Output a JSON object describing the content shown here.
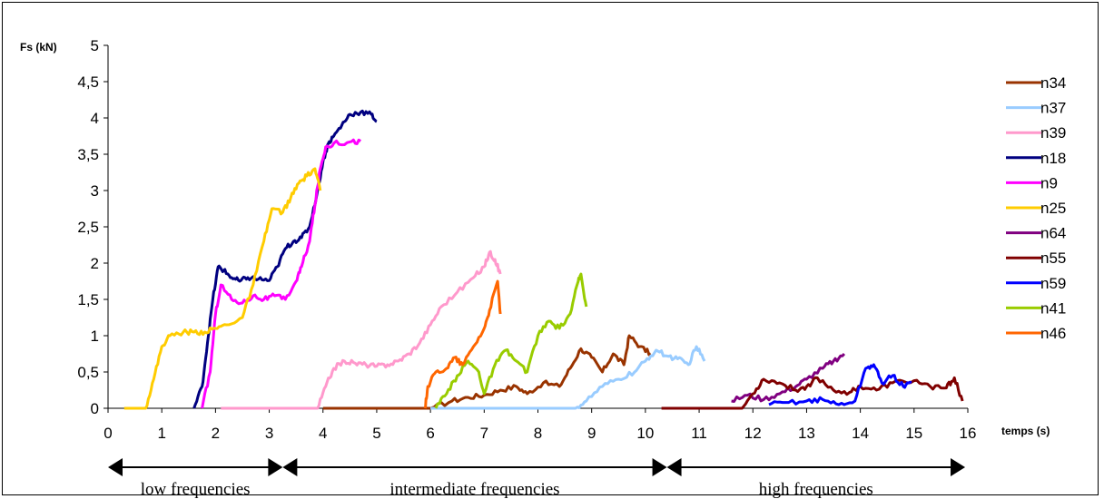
{
  "chart_data": {
    "type": "line",
    "ylabel": "Fs (kN)",
    "xlabel": "temps (s)",
    "xlim": [
      0,
      16
    ],
    "ylim": [
      0,
      5
    ],
    "xticks": [
      "0",
      "1",
      "2",
      "3",
      "4",
      "5",
      "6",
      "7",
      "8",
      "9",
      "10",
      "11",
      "12",
      "13",
      "14",
      "15",
      "16"
    ],
    "yticks": [
      "0",
      "0,5",
      "1",
      "1,5",
      "2",
      "2,5",
      "3",
      "3,5",
      "4",
      "4,5",
      "5"
    ],
    "grid": false,
    "legend_position": "right",
    "series": [
      {
        "name": "n34",
        "color": "#993300",
        "points": [
          [
            4.0,
            0.0
          ],
          [
            6.0,
            0.0
          ],
          [
            6.4,
            0.1
          ],
          [
            6.7,
            0.15
          ],
          [
            7.0,
            0.18
          ],
          [
            7.3,
            0.25
          ],
          [
            7.6,
            0.3
          ],
          [
            7.8,
            0.2
          ],
          [
            8.1,
            0.35
          ],
          [
            8.4,
            0.3
          ],
          [
            8.6,
            0.55
          ],
          [
            8.8,
            0.82
          ],
          [
            9.0,
            0.7
          ],
          [
            9.2,
            0.5
          ],
          [
            9.4,
            0.75
          ],
          [
            9.6,
            0.6
          ],
          [
            9.7,
            1.0
          ],
          [
            9.9,
            0.85
          ],
          [
            10.1,
            0.75
          ]
        ]
      },
      {
        "name": "n37",
        "color": "#99CCFF",
        "points": [
          [
            6.0,
            0.0
          ],
          [
            8.7,
            0.0
          ],
          [
            8.9,
            0.1
          ],
          [
            9.2,
            0.3
          ],
          [
            9.5,
            0.4
          ],
          [
            9.8,
            0.5
          ],
          [
            10.0,
            0.65
          ],
          [
            10.2,
            0.8
          ],
          [
            10.4,
            0.72
          ],
          [
            10.6,
            0.68
          ],
          [
            10.8,
            0.6
          ],
          [
            10.95,
            0.85
          ],
          [
            11.1,
            0.65
          ]
        ]
      },
      {
        "name": "n39",
        "color": "#FF99CC",
        "points": [
          [
            2.1,
            0.0
          ],
          [
            3.9,
            0.0
          ],
          [
            4.05,
            0.3
          ],
          [
            4.2,
            0.55
          ],
          [
            4.4,
            0.65
          ],
          [
            4.6,
            0.62
          ],
          [
            4.8,
            0.6
          ],
          [
            5.0,
            0.58
          ],
          [
            5.2,
            0.6
          ],
          [
            5.4,
            0.65
          ],
          [
            5.6,
            0.75
          ],
          [
            5.8,
            0.9
          ],
          [
            6.0,
            1.15
          ],
          [
            6.2,
            1.4
          ],
          [
            6.5,
            1.6
          ],
          [
            6.8,
            1.8
          ],
          [
            7.0,
            1.95
          ],
          [
            7.1,
            2.15
          ],
          [
            7.2,
            2.05
          ],
          [
            7.3,
            1.85
          ]
        ]
      },
      {
        "name": "n18",
        "color": "#000080",
        "points": [
          [
            1.6,
            0.0
          ],
          [
            1.75,
            0.3
          ],
          [
            1.85,
            0.9
          ],
          [
            1.95,
            1.5
          ],
          [
            2.05,
            1.95
          ],
          [
            2.15,
            1.9
          ],
          [
            2.3,
            1.8
          ],
          [
            2.45,
            1.75
          ],
          [
            2.6,
            1.8
          ],
          [
            2.8,
            1.78
          ],
          [
            3.0,
            1.76
          ],
          [
            3.15,
            1.95
          ],
          [
            3.3,
            2.2
          ],
          [
            3.45,
            2.3
          ],
          [
            3.6,
            2.35
          ],
          [
            3.75,
            2.5
          ],
          [
            3.9,
            3.0
          ],
          [
            4.0,
            3.4
          ],
          [
            4.1,
            3.65
          ],
          [
            4.2,
            3.75
          ],
          [
            4.35,
            3.9
          ],
          [
            4.5,
            4.05
          ],
          [
            4.7,
            4.08
          ],
          [
            4.9,
            4.05
          ],
          [
            5.0,
            3.95
          ]
        ]
      },
      {
        "name": "n9",
        "color": "#FF00FF",
        "points": [
          [
            1.75,
            0.0
          ],
          [
            1.9,
            0.5
          ],
          [
            2.0,
            1.3
          ],
          [
            2.1,
            1.7
          ],
          [
            2.3,
            1.5
          ],
          [
            2.5,
            1.45
          ],
          [
            2.7,
            1.55
          ],
          [
            2.9,
            1.5
          ],
          [
            3.1,
            1.55
          ],
          [
            3.3,
            1.5
          ],
          [
            3.5,
            1.75
          ],
          [
            3.6,
            1.95
          ],
          [
            3.75,
            2.3
          ],
          [
            3.85,
            2.8
          ],
          [
            3.95,
            3.3
          ],
          [
            4.05,
            3.6
          ],
          [
            4.2,
            3.65
          ],
          [
            4.5,
            3.67
          ],
          [
            4.7,
            3.68
          ]
        ]
      },
      {
        "name": "n25",
        "color": "#FFCC00",
        "points": [
          [
            0.3,
            0.0
          ],
          [
            0.7,
            0.0
          ],
          [
            0.85,
            0.4
          ],
          [
            1.0,
            0.85
          ],
          [
            1.15,
            1.0
          ],
          [
            1.4,
            1.05
          ],
          [
            1.6,
            1.05
          ],
          [
            1.8,
            1.05
          ],
          [
            2.0,
            1.1
          ],
          [
            2.2,
            1.15
          ],
          [
            2.5,
            1.25
          ],
          [
            2.7,
            1.7
          ],
          [
            2.9,
            2.3
          ],
          [
            3.05,
            2.75
          ],
          [
            3.25,
            2.7
          ],
          [
            3.4,
            2.9
          ],
          [
            3.55,
            3.1
          ],
          [
            3.7,
            3.2
          ],
          [
            3.85,
            3.3
          ],
          [
            3.95,
            3.0
          ]
        ]
      },
      {
        "name": "n64",
        "color": "#800080",
        "points": [
          [
            11.6,
            0.1
          ],
          [
            11.9,
            0.18
          ],
          [
            12.2,
            0.12
          ],
          [
            12.5,
            0.2
          ],
          [
            12.8,
            0.3
          ],
          [
            13.0,
            0.4
          ],
          [
            13.3,
            0.55
          ],
          [
            13.5,
            0.65
          ],
          [
            13.7,
            0.75
          ]
        ]
      },
      {
        "name": "n55",
        "color": "#800000",
        "points": [
          [
            10.3,
            0.0
          ],
          [
            11.8,
            0.0
          ],
          [
            12.0,
            0.2
          ],
          [
            12.2,
            0.4
          ],
          [
            12.5,
            0.35
          ],
          [
            12.8,
            0.25
          ],
          [
            13.0,
            0.3
          ],
          [
            13.2,
            0.42
          ],
          [
            13.5,
            0.25
          ],
          [
            13.8,
            0.22
          ],
          [
            14.0,
            0.3
          ],
          [
            14.3,
            0.25
          ],
          [
            14.6,
            0.35
          ],
          [
            15.0,
            0.38
          ],
          [
            15.3,
            0.3
          ],
          [
            15.6,
            0.28
          ],
          [
            15.75,
            0.42
          ],
          [
            15.9,
            0.1
          ]
        ]
      },
      {
        "name": "n59",
        "color": "#0000FF",
        "points": [
          [
            12.3,
            0.05
          ],
          [
            12.6,
            0.08
          ],
          [
            13.0,
            0.1
          ],
          [
            13.3,
            0.12
          ],
          [
            13.6,
            0.05
          ],
          [
            13.9,
            0.1
          ],
          [
            14.1,
            0.55
          ],
          [
            14.25,
            0.6
          ],
          [
            14.4,
            0.35
          ],
          [
            14.6,
            0.45
          ],
          [
            14.8,
            0.3
          ],
          [
            14.95,
            0.35
          ]
        ]
      },
      {
        "name": "n41",
        "color": "#99CC00",
        "points": [
          [
            6.1,
            0.0
          ],
          [
            6.3,
            0.2
          ],
          [
            6.5,
            0.45
          ],
          [
            6.7,
            0.65
          ],
          [
            6.9,
            0.5
          ],
          [
            7.0,
            0.2
          ],
          [
            7.2,
            0.6
          ],
          [
            7.4,
            0.8
          ],
          [
            7.6,
            0.65
          ],
          [
            7.8,
            0.5
          ],
          [
            8.0,
            1.0
          ],
          [
            8.2,
            1.2
          ],
          [
            8.4,
            1.1
          ],
          [
            8.6,
            1.3
          ],
          [
            8.75,
            1.75
          ],
          [
            8.8,
            1.85
          ],
          [
            8.9,
            1.4
          ]
        ]
      },
      {
        "name": "n46",
        "color": "#FF6600",
        "points": [
          [
            5.9,
            0.0
          ],
          [
            5.95,
            0.3
          ],
          [
            6.1,
            0.5
          ],
          [
            6.3,
            0.55
          ],
          [
            6.45,
            0.7
          ],
          [
            6.6,
            0.6
          ],
          [
            6.8,
            0.85
          ],
          [
            7.0,
            1.1
          ],
          [
            7.1,
            1.35
          ],
          [
            7.25,
            1.75
          ],
          [
            7.3,
            1.3
          ]
        ]
      }
    ]
  },
  "bands": [
    {
      "label": "low frequencies",
      "start": 0,
      "end": 3.25
    },
    {
      "label": "intermediate frequencies",
      "start": 3.25,
      "end": 10.4
    },
    {
      "label": "high frequencies",
      "start": 10.4,
      "end": 15.95
    }
  ]
}
